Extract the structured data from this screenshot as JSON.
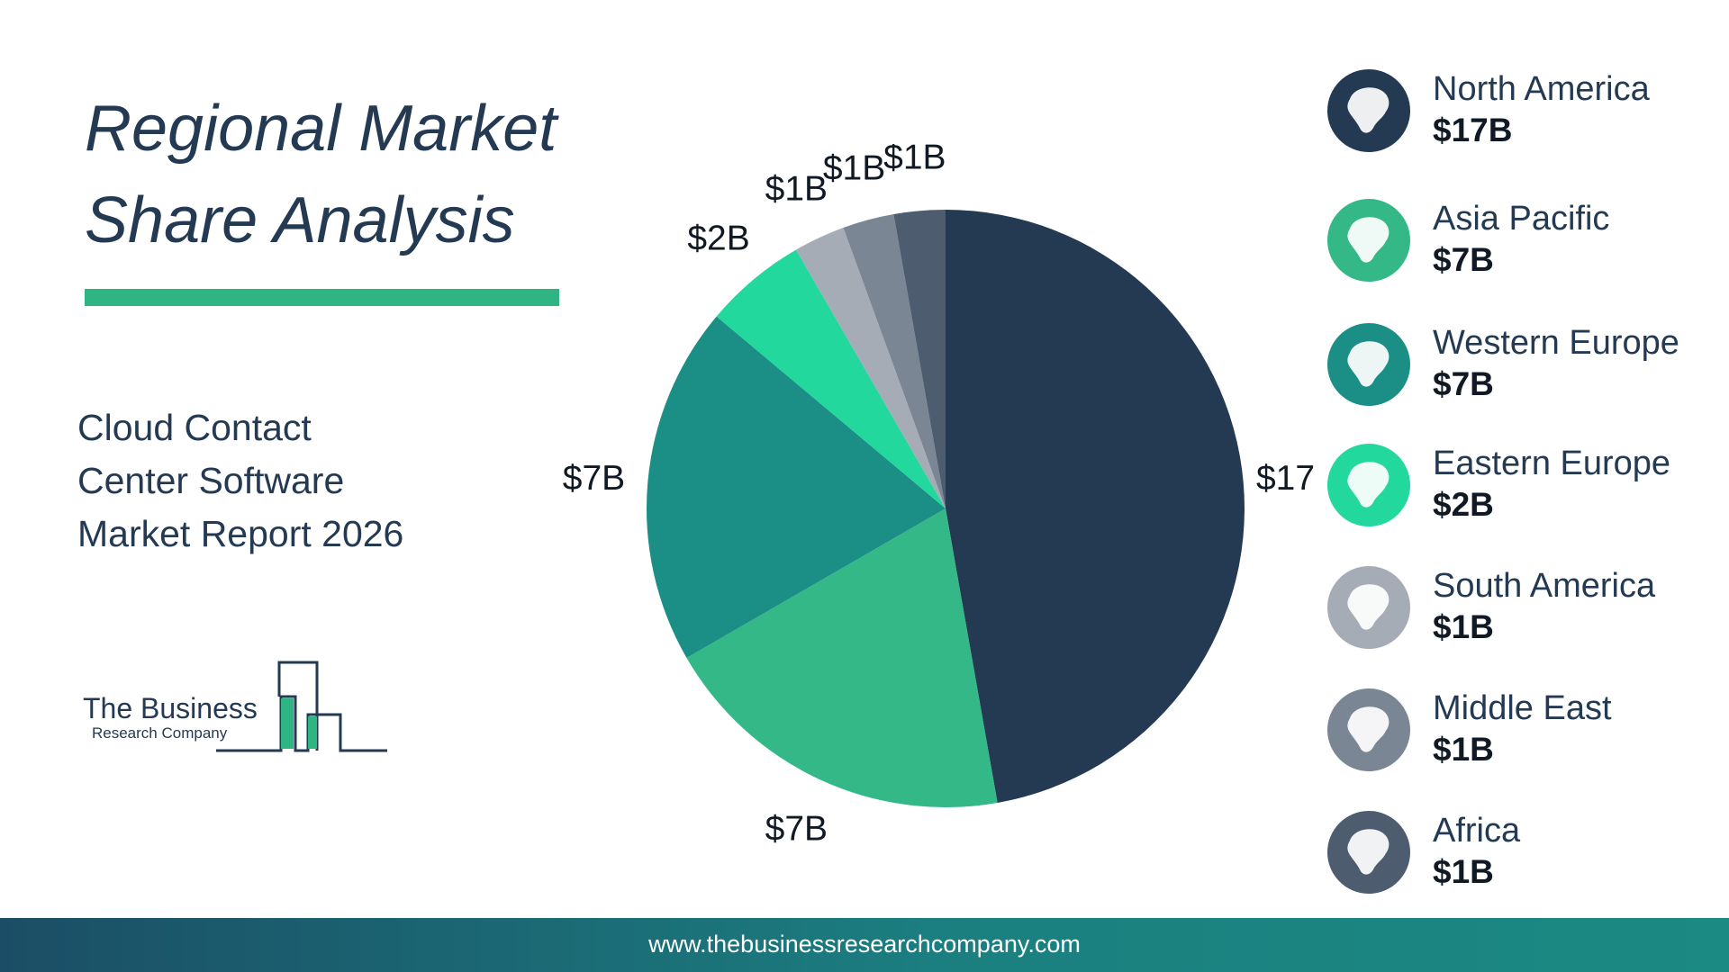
{
  "title_lines": [
    "Regional Market",
    "Share Analysis"
  ],
  "subtitle_lines": [
    "Cloud Contact",
    "Center Software",
    "Market Report 2026"
  ],
  "logo": {
    "line1": "The Business",
    "line2": "Research Company"
  },
  "footer": {
    "url": "www.thebusinessresearchcompany.com"
  },
  "colors": {
    "title": "#243a53",
    "accent": "#2fb584",
    "footer_start": "#1b4e66",
    "footer_end": "#1b8a82"
  },
  "chart_data": {
    "type": "pie",
    "start": "12 o'clock",
    "direction": "clockwise",
    "slices": [
      {
        "label": "North America",
        "value": 17,
        "display": "$17B",
        "color": "#243a53",
        "icon": "north-america-map-icon"
      },
      {
        "label": "Asia Pacific",
        "value": 7,
        "display": "$7B",
        "color": "#34b888",
        "icon": "asia-pacific-map-icon"
      },
      {
        "label": "Western Europe",
        "value": 7,
        "display": "$7B",
        "color": "#1b8f86",
        "icon": "western-europe-map-icon"
      },
      {
        "label": "Eastern Europe",
        "value": 2,
        "display": "$2B",
        "color": "#22d89c",
        "icon": "eastern-europe-map-icon"
      },
      {
        "label": "South America",
        "value": 1,
        "display": "$1B",
        "color": "#a6acb6",
        "icon": "south-america-map-icon"
      },
      {
        "label": "Middle East",
        "value": 1,
        "display": "$1B",
        "color": "#7b8694",
        "icon": "middle-east-map-icon"
      },
      {
        "label": "Africa",
        "value": 1,
        "display": "$1B",
        "color": "#4d5c6e",
        "icon": "africa-map-icon"
      }
    ]
  }
}
